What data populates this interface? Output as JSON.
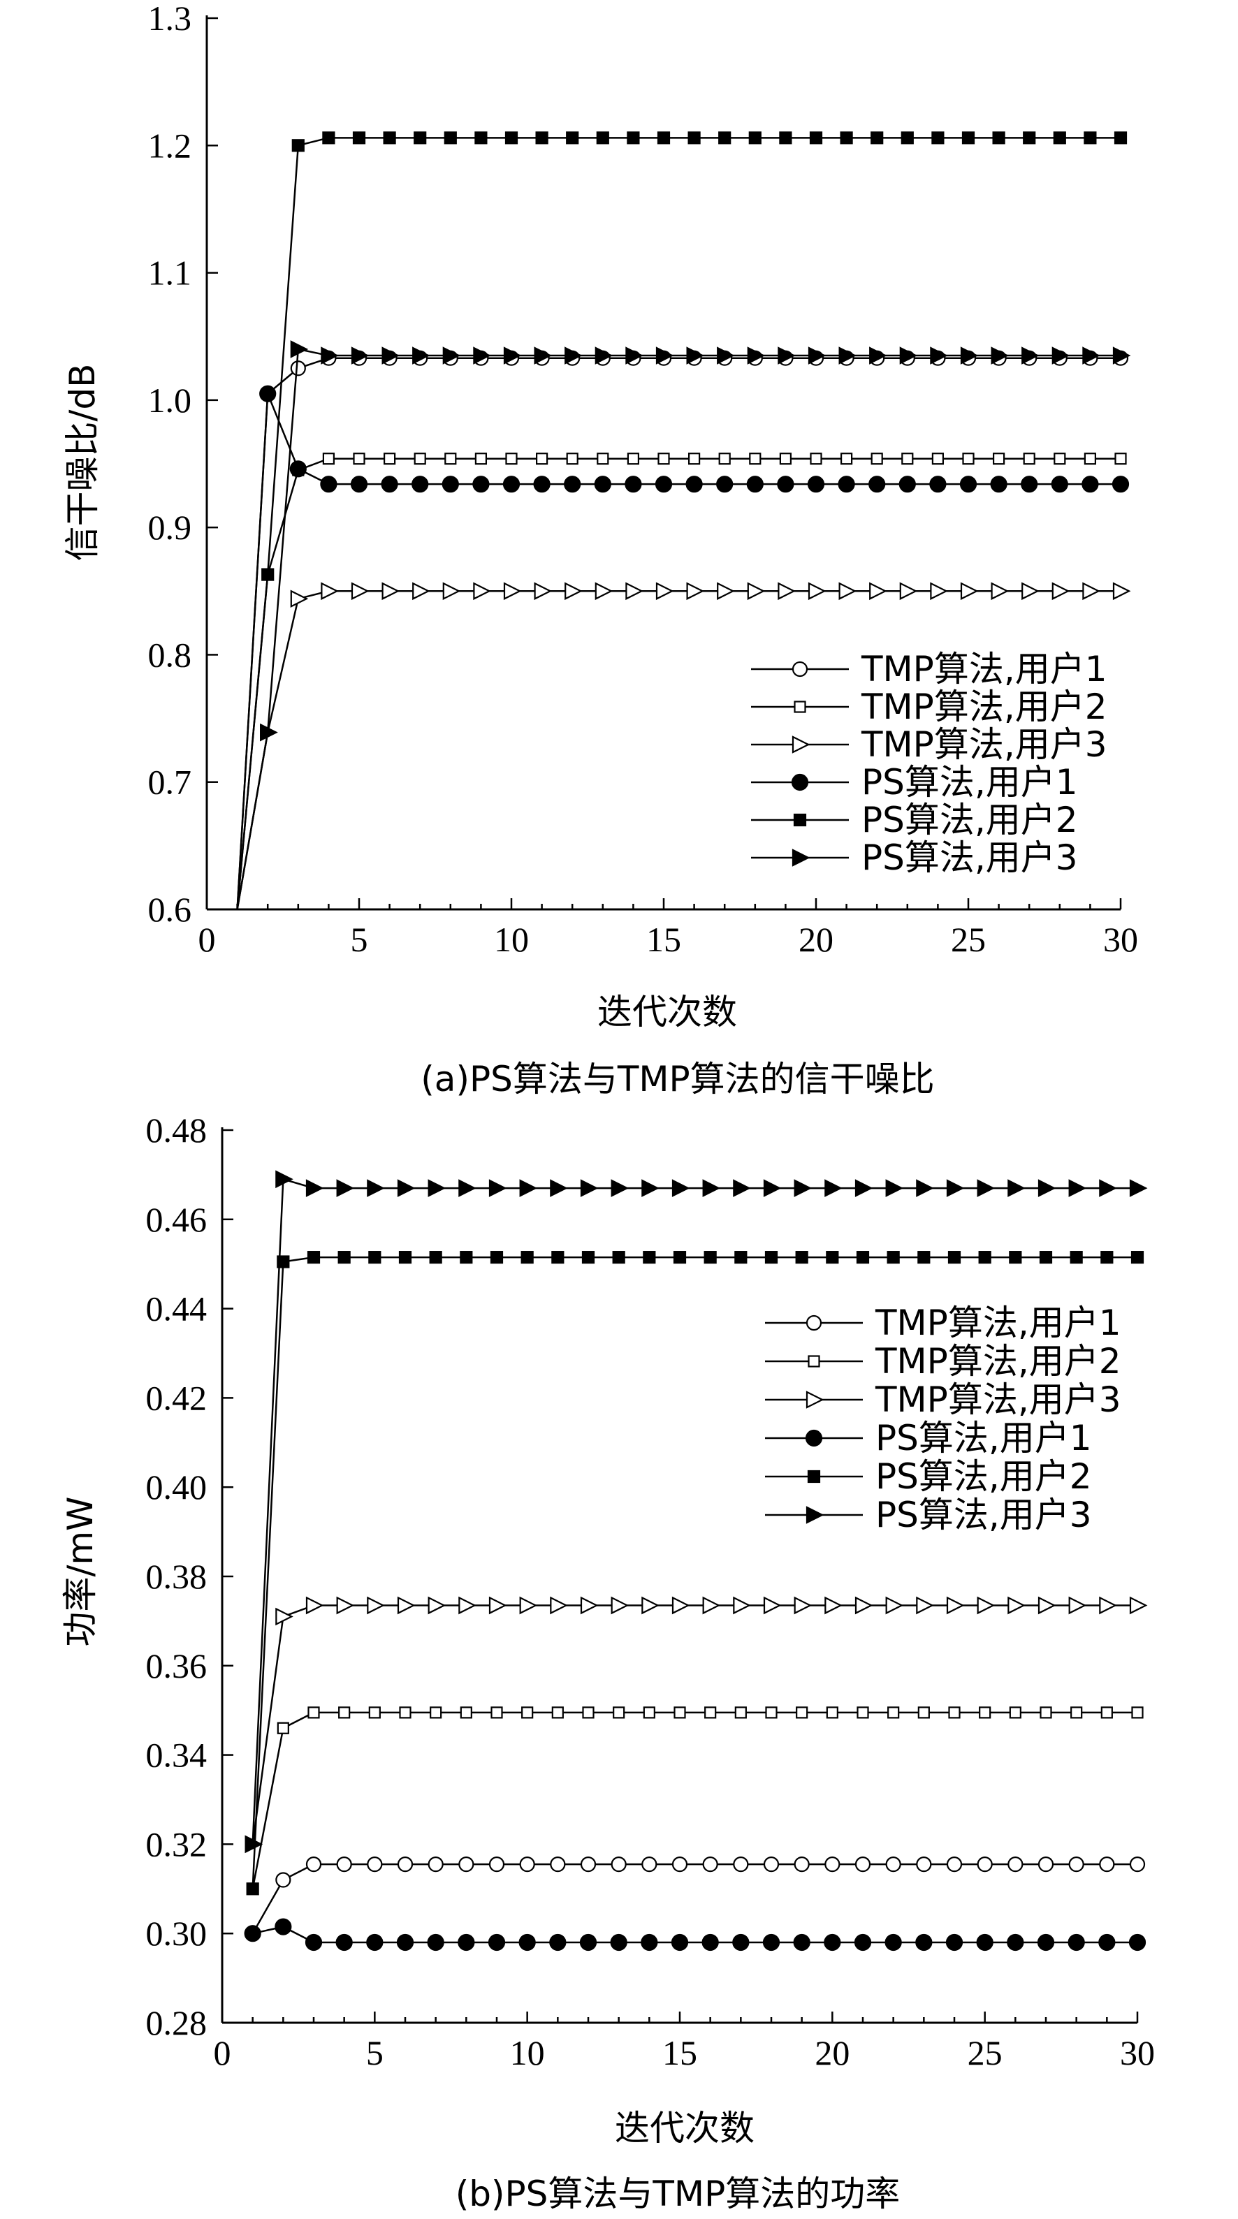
{
  "chart_data": [
    {
      "type": "line",
      "caption": "(a)PS算法与TMP算法的信干噪比",
      "xlabel": "迭代次数",
      "ylabel": "信干噪比/dB",
      "xlim": [
        0,
        30
      ],
      "ylim": [
        0.6,
        1.3
      ],
      "xticks": [
        0,
        5,
        10,
        15,
        20,
        25,
        30
      ],
      "yticks": [
        "0.6",
        "0.7",
        "0.8",
        "0.9",
        "1.0",
        "1.1",
        "1.2",
        "1.3"
      ],
      "legend_position": "bottom-right",
      "grid": false,
      "series": [
        {
          "name": "TMP算法,用户1",
          "marker": "circle-open",
          "x": [
            1,
            2,
            3,
            4,
            5,
            6,
            7,
            8,
            9,
            10,
            11,
            12,
            13,
            14,
            15,
            16,
            17,
            18,
            19,
            20,
            21,
            22,
            23,
            24,
            25,
            26,
            27,
            28,
            29,
            30
          ],
          "y": [
            0.6,
            1.005,
            1.025,
            1.033,
            1.033,
            1.033,
            1.033,
            1.033,
            1.033,
            1.033,
            1.033,
            1.033,
            1.033,
            1.033,
            1.033,
            1.033,
            1.033,
            1.033,
            1.033,
            1.033,
            1.033,
            1.033,
            1.033,
            1.033,
            1.033,
            1.033,
            1.033,
            1.033,
            1.033,
            1.033
          ]
        },
        {
          "name": "TMP算法,用户2",
          "marker": "square-open",
          "x": [
            1,
            2,
            3,
            4,
            5,
            6,
            7,
            8,
            9,
            10,
            11,
            12,
            13,
            14,
            15,
            16,
            17,
            18,
            19,
            20,
            21,
            22,
            23,
            24,
            25,
            26,
            27,
            28,
            29,
            30
          ],
          "y": [
            0.6,
            0.863,
            0.945,
            0.954,
            0.954,
            0.954,
            0.954,
            0.954,
            0.954,
            0.954,
            0.954,
            0.954,
            0.954,
            0.954,
            0.954,
            0.954,
            0.954,
            0.954,
            0.954,
            0.954,
            0.954,
            0.954,
            0.954,
            0.954,
            0.954,
            0.954,
            0.954,
            0.954,
            0.954,
            0.954
          ]
        },
        {
          "name": "TMP算法,用户3",
          "marker": "triangle-right-open",
          "x": [
            1,
            2,
            3,
            4,
            5,
            6,
            7,
            8,
            9,
            10,
            11,
            12,
            13,
            14,
            15,
            16,
            17,
            18,
            19,
            20,
            21,
            22,
            23,
            24,
            25,
            26,
            27,
            28,
            29,
            30
          ],
          "y": [
            0.6,
            0.739,
            0.844,
            0.85,
            0.85,
            0.85,
            0.85,
            0.85,
            0.85,
            0.85,
            0.85,
            0.85,
            0.85,
            0.85,
            0.85,
            0.85,
            0.85,
            0.85,
            0.85,
            0.85,
            0.85,
            0.85,
            0.85,
            0.85,
            0.85,
            0.85,
            0.85,
            0.85,
            0.85,
            0.85
          ]
        },
        {
          "name": "PS算法,用户1",
          "marker": "circle-filled",
          "x": [
            1,
            2,
            3,
            4,
            5,
            6,
            7,
            8,
            9,
            10,
            11,
            12,
            13,
            14,
            15,
            16,
            17,
            18,
            19,
            20,
            21,
            22,
            23,
            24,
            25,
            26,
            27,
            28,
            29,
            30
          ],
          "y": [
            0.6,
            1.005,
            0.946,
            0.934,
            0.934,
            0.934,
            0.934,
            0.934,
            0.934,
            0.934,
            0.934,
            0.934,
            0.934,
            0.934,
            0.934,
            0.934,
            0.934,
            0.934,
            0.934,
            0.934,
            0.934,
            0.934,
            0.934,
            0.934,
            0.934,
            0.934,
            0.934,
            0.934,
            0.934,
            0.934
          ]
        },
        {
          "name": "PS算法,用户2",
          "marker": "square-filled",
          "x": [
            1,
            2,
            3,
            4,
            5,
            6,
            7,
            8,
            9,
            10,
            11,
            12,
            13,
            14,
            15,
            16,
            17,
            18,
            19,
            20,
            21,
            22,
            23,
            24,
            25,
            26,
            27,
            28,
            29,
            30
          ],
          "y": [
            0.6,
            0.863,
            1.2,
            1.206,
            1.206,
            1.206,
            1.206,
            1.206,
            1.206,
            1.206,
            1.206,
            1.206,
            1.206,
            1.206,
            1.206,
            1.206,
            1.206,
            1.206,
            1.206,
            1.206,
            1.206,
            1.206,
            1.206,
            1.206,
            1.206,
            1.206,
            1.206,
            1.206,
            1.206,
            1.206
          ]
        },
        {
          "name": "PS算法,用户3",
          "marker": "triangle-right-filled",
          "x": [
            1,
            2,
            3,
            4,
            5,
            6,
            7,
            8,
            9,
            10,
            11,
            12,
            13,
            14,
            15,
            16,
            17,
            18,
            19,
            20,
            21,
            22,
            23,
            24,
            25,
            26,
            27,
            28,
            29,
            30
          ],
          "y": [
            0.6,
            0.739,
            1.04,
            1.035,
            1.035,
            1.035,
            1.035,
            1.035,
            1.035,
            1.035,
            1.035,
            1.035,
            1.035,
            1.035,
            1.035,
            1.035,
            1.035,
            1.035,
            1.035,
            1.035,
            1.035,
            1.035,
            1.035,
            1.035,
            1.035,
            1.035,
            1.035,
            1.035,
            1.035,
            1.035
          ]
        }
      ]
    },
    {
      "type": "line",
      "caption": "(b)PS算法与TMP算法的功率",
      "xlabel": "迭代次数",
      "ylabel": "功率/mW",
      "xlim": [
        0,
        30
      ],
      "ylim": [
        0.28,
        0.48
      ],
      "xticks": [
        0,
        5,
        10,
        15,
        20,
        25,
        30
      ],
      "yticks": [
        "0.28",
        "0.30",
        "0.32",
        "0.34",
        "0.36",
        "0.38",
        "0.40",
        "0.42",
        "0.44",
        "0.46",
        "0.48"
      ],
      "legend_position": "top-right",
      "grid": false,
      "series": [
        {
          "name": "TMP算法,用户1",
          "marker": "circle-open",
          "x": [
            1,
            2,
            3,
            4,
            5,
            6,
            7,
            8,
            9,
            10,
            11,
            12,
            13,
            14,
            15,
            16,
            17,
            18,
            19,
            20,
            21,
            22,
            23,
            24,
            25,
            26,
            27,
            28,
            29,
            30
          ],
          "y": [
            0.3,
            0.312,
            0.3155,
            0.3155,
            0.3155,
            0.3155,
            0.3155,
            0.3155,
            0.3155,
            0.3155,
            0.3155,
            0.3155,
            0.3155,
            0.3155,
            0.3155,
            0.3155,
            0.3155,
            0.3155,
            0.3155,
            0.3155,
            0.3155,
            0.3155,
            0.3155,
            0.3155,
            0.3155,
            0.3155,
            0.3155,
            0.3155,
            0.3155,
            0.3155
          ]
        },
        {
          "name": "TMP算法,用户2",
          "marker": "square-open",
          "x": [
            1,
            2,
            3,
            4,
            5,
            6,
            7,
            8,
            9,
            10,
            11,
            12,
            13,
            14,
            15,
            16,
            17,
            18,
            19,
            20,
            21,
            22,
            23,
            24,
            25,
            26,
            27,
            28,
            29,
            30
          ],
          "y": [
            0.31,
            0.346,
            0.3495,
            0.3495,
            0.3495,
            0.3495,
            0.3495,
            0.3495,
            0.3495,
            0.3495,
            0.3495,
            0.3495,
            0.3495,
            0.3495,
            0.3495,
            0.3495,
            0.3495,
            0.3495,
            0.3495,
            0.3495,
            0.3495,
            0.3495,
            0.3495,
            0.3495,
            0.3495,
            0.3495,
            0.3495,
            0.3495,
            0.3495,
            0.3495
          ]
        },
        {
          "name": "TMP算法,用户3",
          "marker": "triangle-right-open",
          "x": [
            1,
            2,
            3,
            4,
            5,
            6,
            7,
            8,
            9,
            10,
            11,
            12,
            13,
            14,
            15,
            16,
            17,
            18,
            19,
            20,
            21,
            22,
            23,
            24,
            25,
            26,
            27,
            28,
            29,
            30
          ],
          "y": [
            0.32,
            0.371,
            0.3735,
            0.3735,
            0.3735,
            0.3735,
            0.3735,
            0.3735,
            0.3735,
            0.3735,
            0.3735,
            0.3735,
            0.3735,
            0.3735,
            0.3735,
            0.3735,
            0.3735,
            0.3735,
            0.3735,
            0.3735,
            0.3735,
            0.3735,
            0.3735,
            0.3735,
            0.3735,
            0.3735,
            0.3735,
            0.3735,
            0.3735,
            0.3735
          ]
        },
        {
          "name": "PS算法,用户1",
          "marker": "circle-filled",
          "x": [
            1,
            2,
            3,
            4,
            5,
            6,
            7,
            8,
            9,
            10,
            11,
            12,
            13,
            14,
            15,
            16,
            17,
            18,
            19,
            20,
            21,
            22,
            23,
            24,
            25,
            26,
            27,
            28,
            29,
            30
          ],
          "y": [
            0.3,
            0.3015,
            0.298,
            0.298,
            0.298,
            0.298,
            0.298,
            0.298,
            0.298,
            0.298,
            0.298,
            0.298,
            0.298,
            0.298,
            0.298,
            0.298,
            0.298,
            0.298,
            0.298,
            0.298,
            0.298,
            0.298,
            0.298,
            0.298,
            0.298,
            0.298,
            0.298,
            0.298,
            0.298,
            0.298
          ]
        },
        {
          "name": "PS算法,用户2",
          "marker": "square-filled",
          "x": [
            1,
            2,
            3,
            4,
            5,
            6,
            7,
            8,
            9,
            10,
            11,
            12,
            13,
            14,
            15,
            16,
            17,
            18,
            19,
            20,
            21,
            22,
            23,
            24,
            25,
            26,
            27,
            28,
            29,
            30
          ],
          "y": [
            0.31,
            0.4505,
            0.4515,
            0.4515,
            0.4515,
            0.4515,
            0.4515,
            0.4515,
            0.4515,
            0.4515,
            0.4515,
            0.4515,
            0.4515,
            0.4515,
            0.4515,
            0.4515,
            0.4515,
            0.4515,
            0.4515,
            0.4515,
            0.4515,
            0.4515,
            0.4515,
            0.4515,
            0.4515,
            0.4515,
            0.4515,
            0.4515,
            0.4515,
            0.4515
          ]
        },
        {
          "name": "PS算法,用户3",
          "marker": "triangle-right-filled",
          "x": [
            1,
            2,
            3,
            4,
            5,
            6,
            7,
            8,
            9,
            10,
            11,
            12,
            13,
            14,
            15,
            16,
            17,
            18,
            19,
            20,
            21,
            22,
            23,
            24,
            25,
            26,
            27,
            28,
            29,
            30
          ],
          "y": [
            0.32,
            0.469,
            0.467,
            0.467,
            0.467,
            0.467,
            0.467,
            0.467,
            0.467,
            0.467,
            0.467,
            0.467,
            0.467,
            0.467,
            0.467,
            0.467,
            0.467,
            0.467,
            0.467,
            0.467,
            0.467,
            0.467,
            0.467,
            0.467,
            0.467,
            0.467,
            0.467,
            0.467,
            0.467,
            0.467
          ]
        }
      ]
    }
  ]
}
